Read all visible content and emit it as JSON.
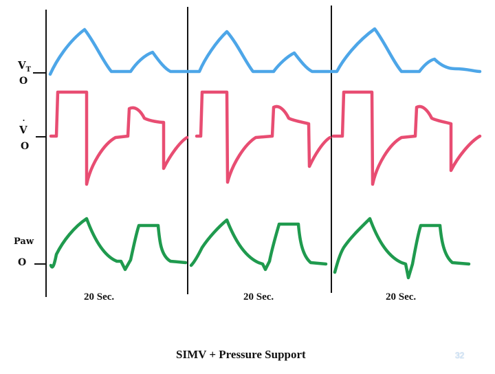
{
  "labels": {
    "tidal_volume": "V",
    "tidal_volume_sub": "T",
    "flow": "V",
    "flow_dot": "˙",
    "paw": "Paw",
    "zero": "O"
  },
  "time_labels": [
    "20 Sec.",
    "20 Sec.",
    "20 Sec."
  ],
  "caption": "SIMV + Pressure Support",
  "page_number": "32",
  "colors": {
    "volume": "#4da6e8",
    "flow": "#e84d72",
    "pressure": "#1f9a4e",
    "divider": "#111111"
  }
}
